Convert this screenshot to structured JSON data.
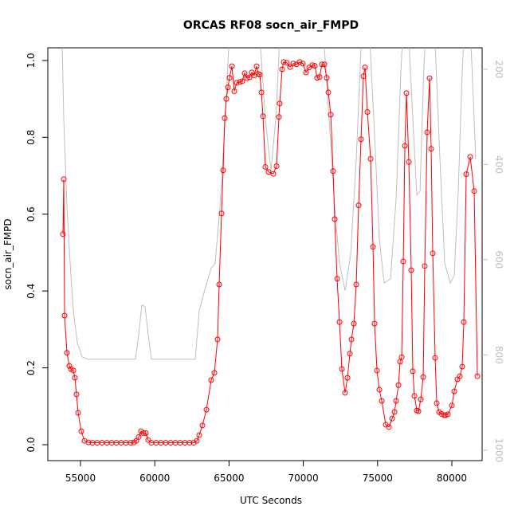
{
  "chart_data": {
    "type": "line",
    "title": "ORCAS RF08 socn_air_FMPD",
    "xlabel": "UTC Seconds",
    "ylabel": "socn_air_FMPD",
    "xlim": [
      52800,
      82040
    ],
    "ylim": [
      -0.0415,
      1.033
    ],
    "y2lim": [
      1022,
      155
    ],
    "xticks": [
      55000,
      60000,
      65000,
      70000,
      75000,
      80000
    ],
    "yticks": [
      {
        "value": 0,
        "label": "0.0"
      },
      0.2,
      0.4,
      0.6,
      0.8,
      {
        "value": 1,
        "label": "1.0"
      }
    ],
    "y2ticks": [
      200,
      400,
      600,
      800,
      1000
    ],
    "series": [
      {
        "color": "#bebebe",
        "axis": "y2",
        "x": [
          53766,
          53873,
          54088,
          54302,
          54517,
          54785,
          55107,
          55483,
          58702,
          58917,
          59131,
          59346,
          59560,
          59775,
          62726,
          62994,
          63423,
          63799,
          64067,
          64389,
          64711,
          64979,
          65140,
          67018,
          67447,
          67823,
          68144,
          68466,
          71310,
          71739,
          72115,
          72437,
          72813,
          73188,
          73564,
          73886,
          74047,
          74423,
          74799,
          75121,
          75443,
          75872,
          76248,
          76570,
          76731,
          77053,
          77375,
          77643,
          77857,
          78125,
          78286,
          78822,
          79198,
          79519,
          79895,
          80163,
          80431,
          80699,
          80860,
          81236,
          81611
        ],
        "values": [
          146,
          305,
          490,
          607,
          707,
          774,
          804,
          809,
          809,
          757,
          695,
          699,
          757,
          809,
          809,
          707,
          657,
          618,
          607,
          490,
          322,
          155,
          105,
          105,
          305,
          414,
          305,
          105,
          105,
          305,
          490,
          607,
          665,
          590,
          389,
          155,
          105,
          105,
          339,
          557,
          649,
          640,
          473,
          205,
          105,
          105,
          305,
          464,
          456,
          188,
          105,
          105,
          389,
          607,
          649,
          632,
          456,
          205,
          105,
          105,
          389
        ]
      },
      {
        "color": "#ff0000",
        "marker": "circle",
        "x": [
          53820,
          53873,
          53927,
          54088,
          54249,
          54356,
          54517,
          54624,
          54732,
          54839,
          55054,
          55268,
          55537,
          55805,
          56127,
          56449,
          56770,
          57092,
          57414,
          57736,
          58058,
          58380,
          58595,
          58756,
          58917,
          59077,
          59238,
          59399,
          59560,
          59775,
          60097,
          60419,
          60741,
          61062,
          61384,
          61706,
          62028,
          62350,
          62618,
          62833,
          62994,
          63208,
          63477,
          63799,
          64013,
          64228,
          64335,
          64496,
          64603,
          64711,
          64818,
          64925,
          65032,
          65193,
          65355,
          65516,
          65730,
          65891,
          66052,
          66213,
          66374,
          66535,
          66696,
          66857,
          66964,
          67071,
          67179,
          67286,
          67447,
          67661,
          67983,
          68198,
          68359,
          68412,
          68573,
          68681,
          68895,
          69110,
          69324,
          69539,
          69754,
          69968,
          70183,
          70398,
          70612,
          70773,
          70934,
          71095,
          71256,
          71417,
          71578,
          71686,
          71847,
          72008,
          72115,
          72276,
          72437,
          72598,
          72813,
          72974,
          73135,
          73242,
          73403,
          73564,
          73725,
          73886,
          74047,
          74155,
          74316,
          74531,
          74692,
          74799,
          74960,
          75121,
          75282,
          75550,
          75765,
          75980,
          76141,
          76248,
          76409,
          76516,
          76624,
          76731,
          76838,
          76945,
          77106,
          77267,
          77375,
          77482,
          77643,
          77750,
          77911,
          78072,
          78178,
          78339,
          78500,
          78608,
          78715,
          78876,
          78983,
          79144,
          79305,
          79466,
          79573,
          79734,
          80002,
          80163,
          80377,
          80538,
          80699,
          80807,
          80968,
          81236,
          81504,
          81719
        ],
        "values": [
          0.548,
          0.691,
          0.336,
          0.239,
          0.205,
          0.197,
          0.193,
          0.174,
          0.131,
          0.083,
          0.035,
          0.01,
          0.006,
          0.005,
          0.005,
          0.005,
          0.005,
          0.005,
          0.005,
          0.005,
          0.005,
          0.005,
          0.006,
          0.01,
          0.02,
          0.035,
          0.03,
          0.03,
          0.012,
          0.005,
          0.005,
          0.005,
          0.005,
          0.005,
          0.005,
          0.005,
          0.005,
          0.005,
          0.005,
          0.01,
          0.025,
          0.05,
          0.091,
          0.168,
          0.187,
          0.274,
          0.417,
          0.602,
          0.714,
          0.85,
          0.9,
          0.93,
          0.955,
          0.985,
          0.92,
          0.942,
          0.944,
          0.946,
          0.967,
          0.954,
          0.956,
          0.969,
          0.961,
          0.985,
          0.965,
          0.963,
          0.917,
          0.855,
          0.723,
          0.71,
          0.705,
          0.725,
          0.853,
          0.888,
          0.977,
          0.996,
          0.994,
          0.983,
          0.992,
          0.99,
          0.996,
          0.992,
          0.969,
          0.982,
          0.988,
          0.986,
          0.955,
          0.957,
          0.99,
          0.99,
          0.955,
          0.917,
          0.859,
          0.712,
          0.587,
          0.432,
          0.319,
          0.197,
          0.135,
          0.174,
          0.237,
          0.274,
          0.315,
          0.417,
          0.623,
          0.795,
          0.959,
          0.982,
          0.866,
          0.744,
          0.515,
          0.315,
          0.193,
          0.143,
          0.114,
          0.052,
          0.046,
          0.068,
          0.085,
          0.114,
          0.155,
          0.216,
          0.228,
          0.477,
          0.778,
          0.915,
          0.736,
          0.454,
          0.191,
          0.127,
          0.089,
          0.087,
          0.118,
          0.176,
          0.465,
          0.813,
          0.954,
          0.77,
          0.498,
          0.226,
          0.108,
          0.085,
          0.08,
          0.077,
          0.077,
          0.079,
          0.102,
          0.139,
          0.17,
          0.178,
          0.203,
          0.319,
          0.704,
          0.749,
          0.66,
          0.178
        ]
      }
    ]
  }
}
